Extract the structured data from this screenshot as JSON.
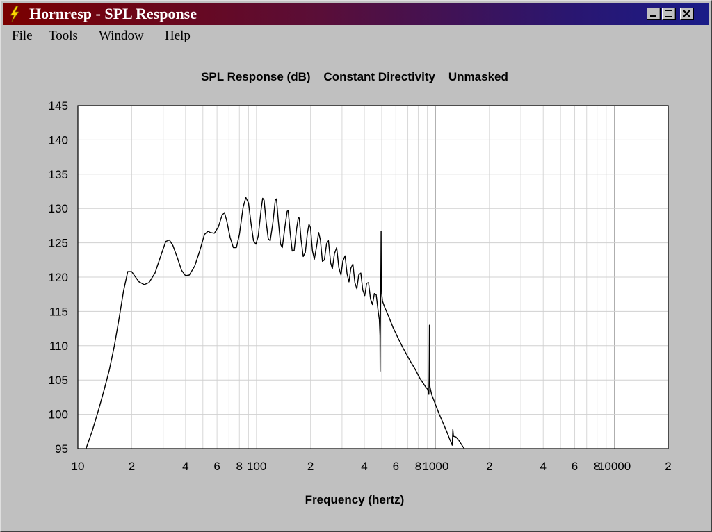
{
  "window": {
    "title": "Hornresp - SPL Response",
    "controls": [
      "minimize",
      "maximize",
      "close"
    ]
  },
  "menu": [
    "File",
    "Tools",
    "Window",
    "Help"
  ],
  "chart_data": {
    "type": "line",
    "title": "SPL Response (dB)    Constant Directivity    Unmasked",
    "xlabel": "Frequency (hertz)",
    "ylabel": "",
    "xscale": "log",
    "xlim": [
      10,
      20000
    ],
    "ylim": [
      95,
      145
    ],
    "grid": true,
    "x_tick_labels": [
      {
        "v": 10,
        "t": "10"
      },
      {
        "v": 20,
        "t": "2"
      },
      {
        "v": 40,
        "t": "4"
      },
      {
        "v": 60,
        "t": "6"
      },
      {
        "v": 80,
        "t": "8"
      },
      {
        "v": 100,
        "t": "100"
      },
      {
        "v": 200,
        "t": "2"
      },
      {
        "v": 400,
        "t": "4"
      },
      {
        "v": 600,
        "t": "6"
      },
      {
        "v": 800,
        "t": "8"
      },
      {
        "v": 1000,
        "t": "1000"
      },
      {
        "v": 2000,
        "t": "2"
      },
      {
        "v": 4000,
        "t": "4"
      },
      {
        "v": 6000,
        "t": "6"
      },
      {
        "v": 8000,
        "t": "8"
      },
      {
        "v": 10000,
        "t": "10000"
      },
      {
        "v": 20000,
        "t": "2"
      }
    ],
    "y_ticks": [
      95,
      100,
      105,
      110,
      115,
      120,
      125,
      130,
      135,
      140,
      145
    ],
    "series": [
      {
        "color": "#000000",
        "points": [
          [
            11.1,
            95.0
          ],
          [
            12.0,
            97.5
          ],
          [
            13.0,
            100.5
          ],
          [
            14.0,
            103.5
          ],
          [
            15.0,
            106.5
          ],
          [
            16.0,
            110.0
          ],
          [
            17.0,
            114.0
          ],
          [
            18.0,
            118.0
          ],
          [
            19.0,
            120.8
          ],
          [
            20.0,
            120.8
          ],
          [
            21.0,
            120.0
          ],
          [
            22.0,
            119.3
          ],
          [
            23.5,
            118.9
          ],
          [
            25.0,
            119.2
          ],
          [
            27.0,
            120.6
          ],
          [
            29.0,
            123.0
          ],
          [
            31.0,
            125.2
          ],
          [
            32.5,
            125.4
          ],
          [
            34.0,
            124.6
          ],
          [
            36.0,
            122.8
          ],
          [
            38.0,
            121.0
          ],
          [
            40.0,
            120.2
          ],
          [
            42.0,
            120.3
          ],
          [
            45.0,
            121.6
          ],
          [
            48.0,
            123.8
          ],
          [
            51.0,
            126.2
          ],
          [
            53.5,
            126.7
          ],
          [
            55.0,
            126.5
          ],
          [
            58.0,
            126.4
          ],
          [
            61.0,
            127.3
          ],
          [
            64.0,
            129.0
          ],
          [
            66.0,
            129.4
          ],
          [
            68.0,
            128.2
          ],
          [
            71.0,
            125.8
          ],
          [
            74.0,
            124.3
          ],
          [
            77.0,
            124.3
          ],
          [
            80.0,
            126.2
          ],
          [
            84.0,
            130.2
          ],
          [
            87.0,
            131.6
          ],
          [
            90.0,
            130.8
          ],
          [
            93.0,
            127.8
          ],
          [
            96.0,
            125.3
          ],
          [
            99.0,
            124.8
          ],
          [
            102.0,
            126.0
          ],
          [
            106.0,
            130.0
          ],
          [
            108.0,
            131.5
          ],
          [
            110.0,
            131.2
          ],
          [
            113.0,
            128.0
          ],
          [
            116.0,
            125.6
          ],
          [
            119.0,
            125.3
          ],
          [
            123.0,
            127.8
          ],
          [
            127.0,
            131.2
          ],
          [
            129.0,
            131.4
          ],
          [
            132.0,
            128.3
          ],
          [
            136.0,
            124.8
          ],
          [
            139.0,
            124.3
          ],
          [
            144.0,
            127.4
          ],
          [
            148.0,
            129.6
          ],
          [
            150.0,
            129.7
          ],
          [
            154.0,
            126.4
          ],
          [
            158.0,
            123.8
          ],
          [
            162.0,
            123.9
          ],
          [
            167.0,
            127.0
          ],
          [
            171.0,
            128.7
          ],
          [
            173.0,
            128.6
          ],
          [
            177.0,
            125.5
          ],
          [
            182.0,
            123.0
          ],
          [
            187.0,
            123.6
          ],
          [
            192.0,
            126.4
          ],
          [
            196.0,
            127.7
          ],
          [
            200.0,
            127.2
          ],
          [
            205.0,
            123.8
          ],
          [
            210.0,
            122.6
          ],
          [
            216.0,
            124.4
          ],
          [
            222.0,
            126.5
          ],
          [
            227.0,
            125.4
          ],
          [
            233.0,
            122.3
          ],
          [
            239.0,
            122.5
          ],
          [
            246.0,
            124.9
          ],
          [
            252.0,
            125.3
          ],
          [
            259.0,
            122.1
          ],
          [
            265.0,
            121.2
          ],
          [
            272.0,
            123.4
          ],
          [
            280.0,
            124.3
          ],
          [
            288.0,
            121.4
          ],
          [
            296.0,
            120.3
          ],
          [
            303.0,
            122.3
          ],
          [
            312.0,
            123.1
          ],
          [
            320.0,
            120.5
          ],
          [
            328.0,
            119.3
          ],
          [
            336.0,
            121.3
          ],
          [
            345.0,
            121.9
          ],
          [
            354.0,
            119.2
          ],
          [
            363.0,
            118.3
          ],
          [
            372.0,
            120.3
          ],
          [
            382.0,
            120.6
          ],
          [
            392.0,
            118.1
          ],
          [
            402.0,
            117.3
          ],
          [
            412.0,
            119.1
          ],
          [
            422.0,
            119.2
          ],
          [
            433.0,
            116.8
          ],
          [
            444.0,
            116.0
          ],
          [
            455.0,
            117.6
          ],
          [
            466.0,
            117.4
          ],
          [
            478.0,
            115.0
          ],
          [
            485.0,
            113.8
          ],
          [
            489.0,
            111.5
          ],
          [
            490.0,
            106.3
          ],
          [
            491.0,
            111.0
          ],
          [
            493.0,
            116.5
          ],
          [
            495.0,
            121.5
          ],
          [
            496.0,
            126.7
          ],
          [
            497.0,
            121.5
          ],
          [
            500.0,
            117.6
          ],
          [
            505.0,
            116.5
          ],
          [
            520.0,
            115.6
          ],
          [
            540.0,
            114.6
          ],
          [
            560.0,
            113.6
          ],
          [
            580.0,
            112.6
          ],
          [
            600.0,
            111.8
          ],
          [
            620.0,
            111.0
          ],
          [
            640.0,
            110.3
          ],
          [
            660.0,
            109.6
          ],
          [
            680.0,
            109.0
          ],
          [
            700.0,
            108.4
          ],
          [
            720.0,
            107.8
          ],
          [
            740.0,
            107.3
          ],
          [
            760.0,
            106.8
          ],
          [
            780.0,
            106.3
          ],
          [
            800.0,
            105.7
          ],
          [
            820.0,
            105.2
          ],
          [
            840.0,
            104.8
          ],
          [
            860.0,
            104.4
          ],
          [
            880.0,
            104.0
          ],
          [
            900.0,
            103.7
          ],
          [
            912.0,
            103.3
          ],
          [
            918.0,
            102.9
          ],
          [
            921.0,
            105.5
          ],
          [
            923.0,
            108.5
          ],
          [
            924.0,
            113.0
          ],
          [
            925.0,
            108.5
          ],
          [
            927.0,
            105.0
          ],
          [
            931.0,
            104.0
          ],
          [
            950.0,
            102.9
          ],
          [
            1000.0,
            101.4
          ],
          [
            1050.0,
            100.0
          ],
          [
            1100.0,
            98.8
          ],
          [
            1150.0,
            97.6
          ],
          [
            1200.0,
            96.4
          ],
          [
            1240.0,
            95.5
          ],
          [
            1250.0,
            97.8
          ],
          [
            1260.0,
            96.8
          ],
          [
            1300.0,
            96.7
          ],
          [
            1350.0,
            96.2
          ],
          [
            1420.0,
            95.3
          ],
          [
            1450.0,
            95.0
          ]
        ]
      }
    ]
  }
}
